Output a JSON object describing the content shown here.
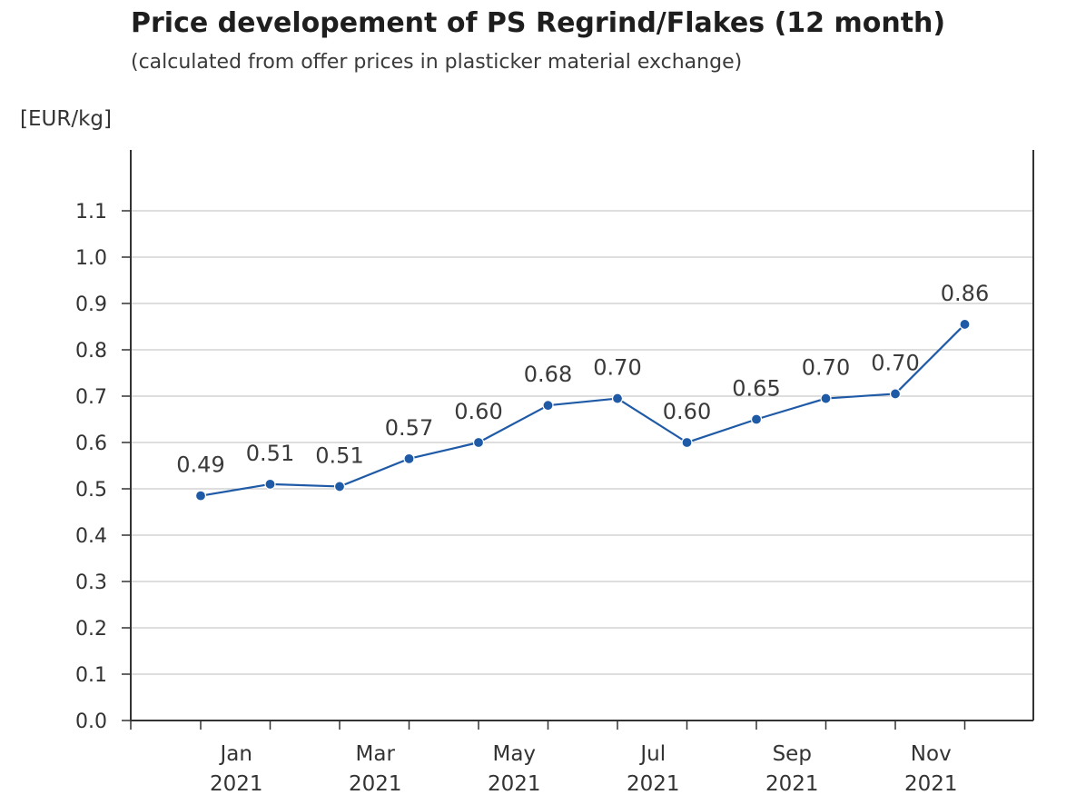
{
  "chart_data": {
    "type": "line",
    "title": "Price developement of PS Regrind/Flakes (12 month)",
    "subtitle": "(calculated from offer prices in plasticker material exchange)",
    "ylabel": "[EUR/kg]",
    "xlabel": "",
    "ylim": [
      0,
      1.2
    ],
    "yticks": [
      "0.0",
      "0.1",
      "0.2",
      "0.3",
      "0.4",
      "0.5",
      "0.6",
      "0.7",
      "0.8",
      "0.9",
      "1.0",
      "1.1"
    ],
    "x_tick_labels": [
      {
        "month": "Jan",
        "year": "2021"
      },
      {
        "month": "Mar",
        "year": "2021"
      },
      {
        "month": "May",
        "year": "2021"
      },
      {
        "month": "Jul",
        "year": "2021"
      },
      {
        "month": "Sep",
        "year": "2021"
      },
      {
        "month": "Nov",
        "year": "2021"
      }
    ],
    "series": [
      {
        "color": "#1f5aa6",
        "values": [
          0.485,
          0.51,
          0.505,
          0.565,
          0.6,
          0.68,
          0.695,
          0.6,
          0.65,
          0.695,
          0.705,
          0.855
        ],
        "labels": [
          "0.49",
          "0.51",
          "0.51",
          "0.57",
          "0.60",
          "0.68",
          "0.70",
          "0.60",
          "0.65",
          "0.70",
          "0.70",
          "0.86"
        ]
      }
    ],
    "grid": true,
    "legend": "none"
  }
}
